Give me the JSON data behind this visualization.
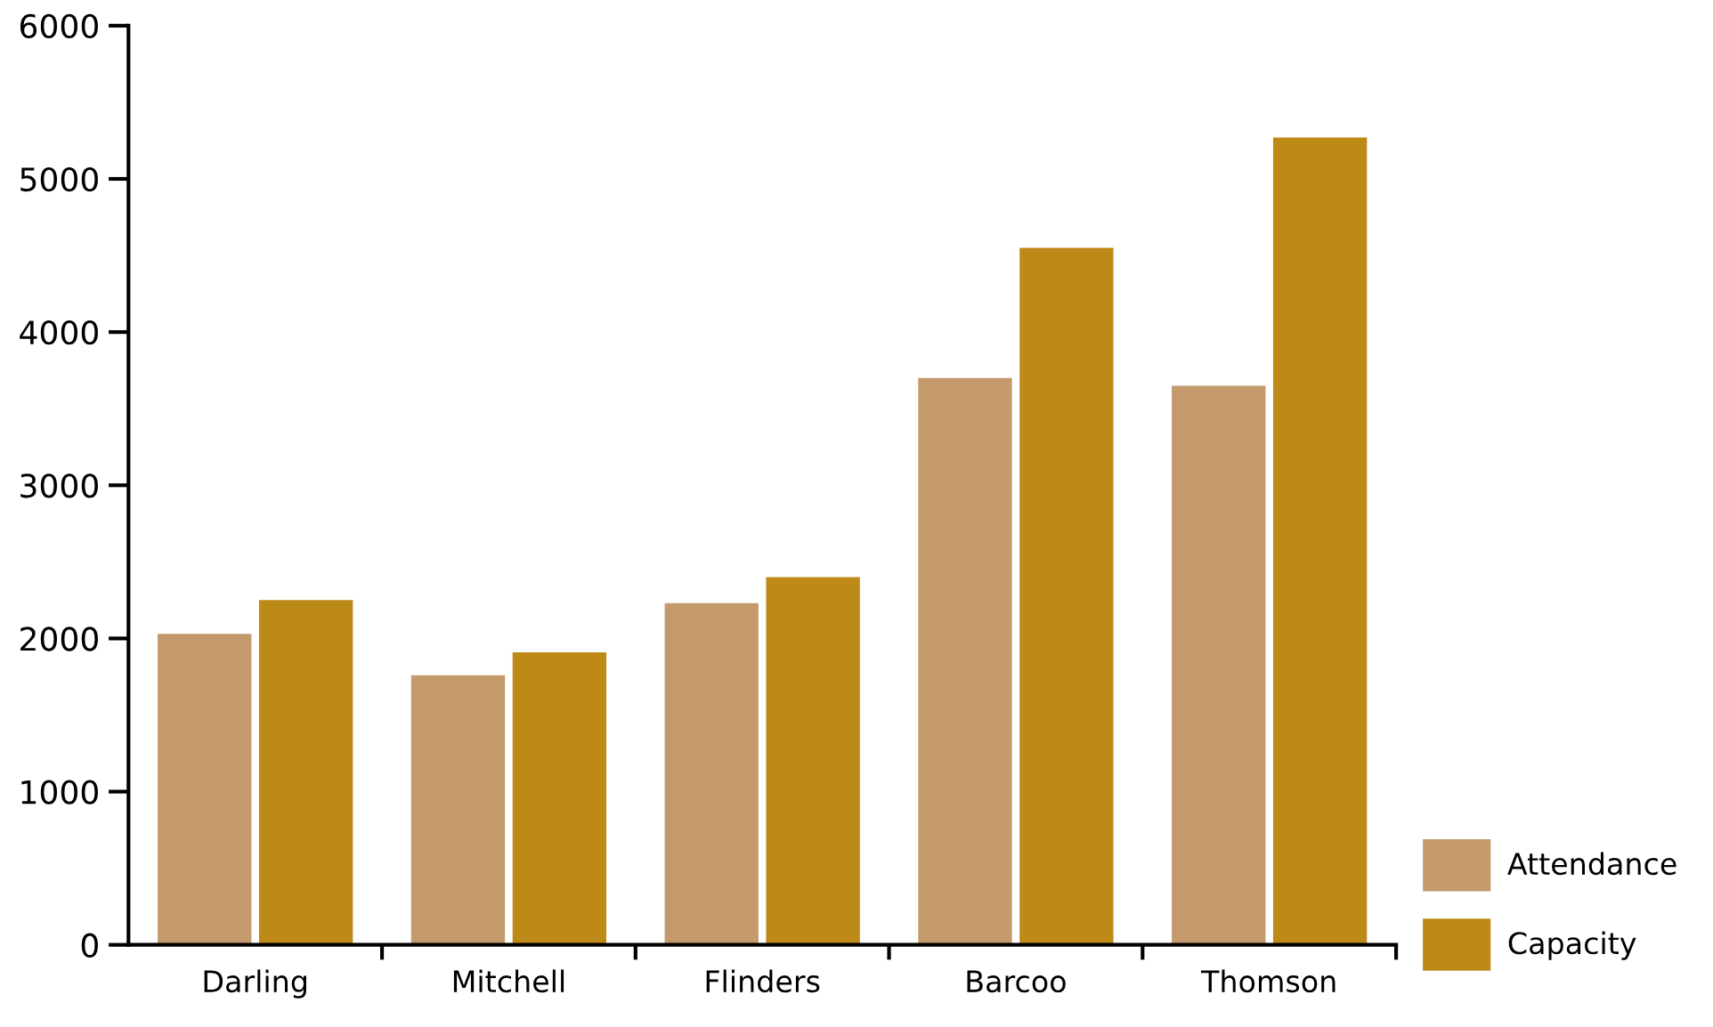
{
  "chart_data": {
    "type": "bar",
    "categories": [
      "Darling",
      "Mitchell",
      "Flinders",
      "Barcoo",
      "Thomson"
    ],
    "series": [
      {
        "name": "Attendance",
        "color": "#c49a6c",
        "values": [
          2030,
          1760,
          2230,
          3700,
          3650
        ]
      },
      {
        "name": "Capacity",
        "color": "#be8a17",
        "values": [
          2250,
          1910,
          2400,
          4550,
          5270
        ]
      }
    ],
    "ylim": [
      0,
      6000
    ],
    "yticks": [
      0,
      1000,
      2000,
      3000,
      4000,
      5000,
      6000
    ],
    "grid": false,
    "legend": "bottom right"
  }
}
